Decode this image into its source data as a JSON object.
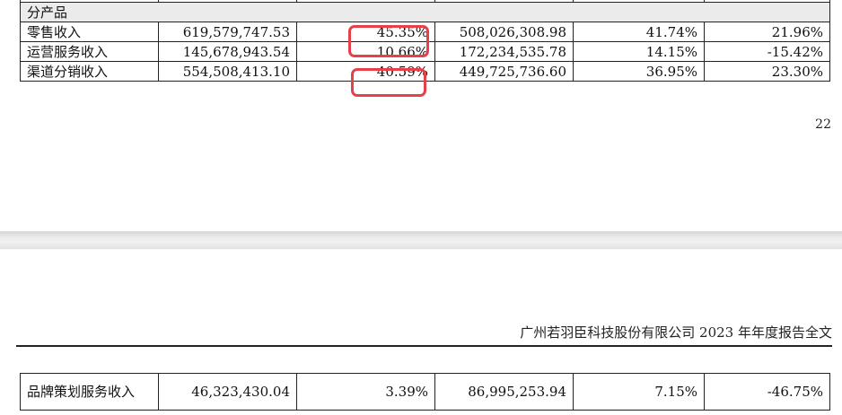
{
  "top_table": {
    "section_label": "分产品",
    "rows": [
      {
        "label": "零售收入",
        "cur_amount": "619,579,747.53",
        "cur_pct": "45.35%",
        "prev_amount": "508,026,308.98",
        "prev_pct": "41.74%",
        "change": "21.96%"
      },
      {
        "label": "运营服务收入",
        "cur_amount": "145,678,943.54",
        "cur_pct": "10.66%",
        "prev_amount": "172,234,535.78",
        "prev_pct": "14.15%",
        "change": "-15.42%"
      },
      {
        "label": "渠道分销收入",
        "cur_amount": "554,508,413.10",
        "cur_pct": "40.59%",
        "prev_amount": "449,725,736.60",
        "prev_pct": "36.95%",
        "change": "23.30%"
      }
    ]
  },
  "page_number": "22",
  "report_header": "广州若羽臣科技股份有限公司 2023 年年度报告全文",
  "bottom_table": {
    "rows": [
      {
        "label": "品牌策划服务收入",
        "cur_amount": "46,323,430.04",
        "cur_pct": "3.39%",
        "prev_amount": "86,995,253.94",
        "prev_pct": "7.15%",
        "change": "-46.75%"
      }
    ]
  },
  "highlight_color": "#e8404a"
}
